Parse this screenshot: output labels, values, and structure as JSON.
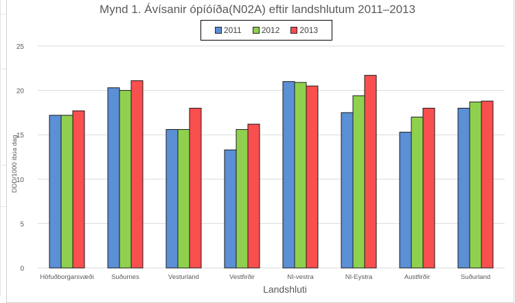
{
  "chart_data": {
    "type": "bar",
    "title": "Mynd 1. Ávísanir ópíóíða(N02A) eftir landshlutum 2011–2013",
    "xlabel": "Landshluti",
    "ylabel": "DDD/1000 íbúa dag",
    "ylim": [
      0,
      25
    ],
    "yticks": [
      0,
      5,
      10,
      15,
      20,
      25
    ],
    "grid": true,
    "legend_position": "top",
    "categories": [
      "Höfuðborgarsvæði",
      "Suðurnes",
      "Vesturland",
      "Vestfirðir",
      "NI-vestra",
      "NI-Eystra",
      "Austfirðir",
      "Suðurland"
    ],
    "series": [
      {
        "name": "2011",
        "color": "#5b8fd6",
        "values": [
          17.2,
          20.3,
          15.6,
          13.3,
          21.0,
          17.5,
          15.3,
          18.0
        ]
      },
      {
        "name": "2012",
        "color": "#8fd14f",
        "values": [
          17.2,
          20.0,
          15.6,
          15.6,
          20.9,
          19.4,
          17.0,
          18.7
        ]
      },
      {
        "name": "2013",
        "color": "#f94f4f",
        "values": [
          17.7,
          21.1,
          18.0,
          16.2,
          20.5,
          21.7,
          18.0,
          18.8
        ]
      }
    ]
  }
}
